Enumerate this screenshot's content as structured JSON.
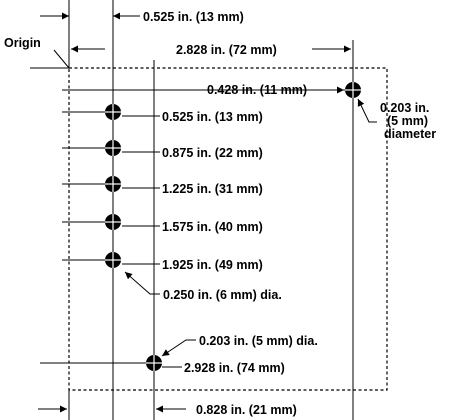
{
  "origin_label": "Origin",
  "dims": {
    "top_offset": "0.525 in. (13 mm)",
    "top_width": "2.828 in. (72 mm)",
    "right_hole_y": "0.428 in. (11 mm)",
    "right_hole_dia_1": "0.203 in.",
    "right_hole_dia_2": "(5 mm)",
    "right_hole_dia_3": "diameter",
    "hole1_y": "0.525 in. (13 mm)",
    "hole2_y": "0.875 in. (22 mm)",
    "hole3_y": "1.225 in. (31 mm)",
    "hole4_y": "1.575 in. (40 mm)",
    "hole5_y": "1.925 in. (49 mm)",
    "left_hole_dia": "0.250 in. (6 mm) dia.",
    "bottom_hole_dia": "0.203 in. (5 mm) dia.",
    "bottom_hole_y": "2.928 in. (74 mm)",
    "bottom_offset": "0.828 in. (21 mm)"
  }
}
